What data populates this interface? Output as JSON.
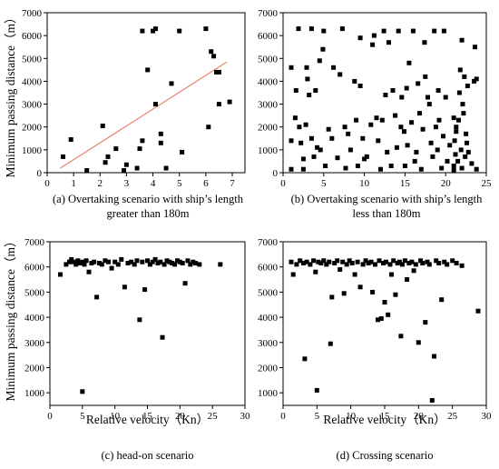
{
  "figure": {
    "ylabel_top": "Minimum passing distance（m）",
    "ylabel_bottom": "Minimum passing distance（m）"
  },
  "chart_data": [
    {
      "type": "scatter",
      "id": "a",
      "caption_line1": "(a) Overtaking scenario with ship’s length",
      "caption_line2": "greater than 180m",
      "xlabel": "",
      "ylabel": "Minimum passing distance（m）",
      "xlim": [
        0,
        7.5
      ],
      "ylim": [
        0,
        7000
      ],
      "xticks": [
        0,
        1,
        2,
        3,
        4,
        5,
        6,
        7
      ],
      "yticks": [
        0,
        1000,
        2000,
        3000,
        4000,
        5000,
        6000,
        7000
      ],
      "trendline": {
        "color": "#e8705a",
        "x": [
          0.5,
          6.8
        ],
        "y": [
          200,
          4850
        ]
      },
      "points": [
        [
          0.6,
          700
        ],
        [
          0.9,
          1450
        ],
        [
          1.5,
          100
        ],
        [
          2.1,
          2050
        ],
        [
          2.3,
          700
        ],
        [
          2.2,
          450
        ],
        [
          2.6,
          1050
        ],
        [
          2.9,
          100
        ],
        [
          3.0,
          350
        ],
        [
          3.4,
          200
        ],
        [
          3.5,
          1050
        ],
        [
          3.6,
          1400
        ],
        [
          3.6,
          6200
        ],
        [
          3.8,
          4500
        ],
        [
          4.0,
          6200
        ],
        [
          4.1,
          6300
        ],
        [
          4.1,
          3000
        ],
        [
          4.3,
          1700
        ],
        [
          4.3,
          1300
        ],
        [
          4.5,
          200
        ],
        [
          4.7,
          3900
        ],
        [
          5.0,
          6200
        ],
        [
          5.1,
          900
        ],
        [
          6.0,
          6300
        ],
        [
          6.1,
          2000
        ],
        [
          6.2,
          5300
        ],
        [
          6.3,
          5100
        ],
        [
          6.4,
          4400
        ],
        [
          6.5,
          4400
        ],
        [
          6.5,
          3000
        ],
        [
          6.9,
          3100
        ]
      ]
    },
    {
      "type": "scatter",
      "id": "b",
      "caption_line1": "(b) Overtaking scenario with ship’s length",
      "caption_line2": "less than 180m",
      "xlabel": "",
      "ylabel": "",
      "xlim": [
        0,
        25
      ],
      "ylim": [
        0,
        7000
      ],
      "xticks": [
        0,
        5,
        10,
        15,
        20,
        25
      ],
      "yticks": [
        0,
        1000,
        2000,
        3000,
        4000,
        5000,
        6000,
        7000
      ],
      "points": [
        [
          1.0,
          150
        ],
        [
          1.0,
          1400
        ],
        [
          1.0,
          4600
        ],
        [
          1.5,
          2400
        ],
        [
          1.6,
          3600
        ],
        [
          1.9,
          6300
        ],
        [
          2.0,
          2000
        ],
        [
          2.2,
          1300
        ],
        [
          2.5,
          600
        ],
        [
          2.5,
          150
        ],
        [
          2.8,
          2100
        ],
        [
          2.9,
          4600
        ],
        [
          3.0,
          4100
        ],
        [
          3.2,
          3400
        ],
        [
          3.5,
          1500
        ],
        [
          3.5,
          6300
        ],
        [
          3.8,
          700
        ],
        [
          4.0,
          3600
        ],
        [
          4.2,
          1100
        ],
        [
          4.5,
          4900
        ],
        [
          4.6,
          1000
        ],
        [
          4.9,
          5400
        ],
        [
          5.0,
          6200
        ],
        [
          5.2,
          300
        ],
        [
          5.6,
          1900
        ],
        [
          6.0,
          1500
        ],
        [
          6.2,
          4600
        ],
        [
          6.7,
          650
        ],
        [
          7.0,
          4300
        ],
        [
          7.3,
          6300
        ],
        [
          7.6,
          2000
        ],
        [
          7.7,
          200
        ],
        [
          8.0,
          1700
        ],
        [
          8.3,
          1000
        ],
        [
          8.8,
          4000
        ],
        [
          9.0,
          2300
        ],
        [
          9.2,
          300
        ],
        [
          9.5,
          5900
        ],
        [
          9.5,
          3800
        ],
        [
          9.8,
          1500
        ],
        [
          10.0,
          600
        ],
        [
          10.3,
          700
        ],
        [
          10.8,
          2100
        ],
        [
          11.0,
          5600
        ],
        [
          11.2,
          6000
        ],
        [
          11.5,
          2400
        ],
        [
          11.7,
          1400
        ],
        [
          12.0,
          150
        ],
        [
          12.2,
          2300
        ],
        [
          12.4,
          6200
        ],
        [
          12.6,
          3400
        ],
        [
          12.8,
          900
        ],
        [
          13.0,
          5700
        ],
        [
          13.3,
          300
        ],
        [
          13.5,
          3600
        ],
        [
          13.8,
          2500
        ],
        [
          14.0,
          1100
        ],
        [
          14.2,
          6200
        ],
        [
          14.5,
          2000
        ],
        [
          14.6,
          3300
        ],
        [
          14.9,
          1800
        ],
        [
          15.0,
          300
        ],
        [
          15.2,
          3700
        ],
        [
          15.3,
          1200
        ],
        [
          15.5,
          4800
        ],
        [
          15.8,
          2200
        ],
        [
          16.0,
          6200
        ],
        [
          16.2,
          500
        ],
        [
          16.4,
          900
        ],
        [
          16.6,
          3900
        ],
        [
          16.8,
          2600
        ],
        [
          17.0,
          150
        ],
        [
          17.2,
          1900
        ],
        [
          17.4,
          5700
        ],
        [
          17.5,
          4200
        ],
        [
          17.8,
          3300
        ],
        [
          18.0,
          3000
        ],
        [
          18.2,
          1300
        ],
        [
          18.4,
          700
        ],
        [
          18.6,
          6200
        ],
        [
          18.8,
          2000
        ],
        [
          19.0,
          1000
        ],
        [
          19.1,
          3600
        ],
        [
          19.2,
          2300
        ],
        [
          19.5,
          200
        ],
        [
          19.7,
          1600
        ],
        [
          19.8,
          6200
        ],
        [
          20.0,
          3300
        ],
        [
          20.2,
          500
        ],
        [
          20.5,
          1200
        ],
        [
          21.0,
          2400
        ],
        [
          21.0,
          300
        ],
        [
          21.0,
          100
        ],
        [
          21.1,
          1400
        ],
        [
          21.2,
          800
        ],
        [
          21.3,
          2000
        ],
        [
          21.3,
          1800
        ],
        [
          21.5,
          500
        ],
        [
          21.6,
          2300
        ],
        [
          21.7,
          3500
        ],
        [
          21.8,
          4500
        ],
        [
          21.9,
          1000
        ],
        [
          22.0,
          5800
        ],
        [
          22.0,
          200
        ],
        [
          22.1,
          3000
        ],
        [
          22.2,
          2600
        ],
        [
          22.3,
          4200
        ],
        [
          22.4,
          700
        ],
        [
          22.5,
          1700
        ],
        [
          22.6,
          1300
        ],
        [
          22.7,
          3800
        ],
        [
          22.8,
          900
        ],
        [
          23.2,
          400
        ],
        [
          23.5,
          4000
        ],
        [
          23.6,
          5500
        ],
        [
          23.8,
          150
        ],
        [
          23.8,
          4100
        ]
      ]
    },
    {
      "type": "scatter",
      "id": "c",
      "caption_line1": "(c) head-on scenario",
      "caption_line2": "",
      "xlabel": "Relative velocity（Kn）",
      "ylabel": "Minimum passing distance（m）",
      "xlim": [
        0,
        30
      ],
      "ylim": [
        500,
        7000
      ],
      "xticks": [
        0,
        5,
        10,
        15,
        20,
        25,
        30
      ],
      "yticks": [
        1000,
        2000,
        3000,
        4000,
        5000,
        6000,
        7000
      ],
      "points": [
        [
          1.6,
          5700
        ],
        [
          2.5,
          6100
        ],
        [
          3.0,
          6200
        ],
        [
          3.3,
          6300
        ],
        [
          3.6,
          6200
        ],
        [
          4.0,
          6100
        ],
        [
          4.3,
          6250
        ],
        [
          4.6,
          6150
        ],
        [
          5.0,
          6200
        ],
        [
          5.3,
          6100
        ],
        [
          5.6,
          6250
        ],
        [
          6.0,
          5800
        ],
        [
          6.4,
          6150
        ],
        [
          6.8,
          6200
        ],
        [
          7.2,
          4800
        ],
        [
          7.6,
          6150
        ],
        [
          8.0,
          6100
        ],
        [
          8.5,
          6250
        ],
        [
          9.0,
          6200
        ],
        [
          9.5,
          5950
        ],
        [
          10.0,
          6200
        ],
        [
          10.5,
          6100
        ],
        [
          11.0,
          6300
        ],
        [
          11.5,
          5200
        ],
        [
          12.0,
          6150
        ],
        [
          12.5,
          6200
        ],
        [
          13.0,
          6100
        ],
        [
          13.4,
          6250
        ],
        [
          13.8,
          3900
        ],
        [
          14.2,
          6200
        ],
        [
          14.6,
          5100
        ],
        [
          15.0,
          6250
        ],
        [
          15.4,
          6100
        ],
        [
          15.8,
          6200
        ],
        [
          16.2,
          6300
        ],
        [
          16.6,
          6150
        ],
        [
          17.0,
          6200
        ],
        [
          17.3,
          3200
        ],
        [
          17.6,
          6100
        ],
        [
          18.0,
          6250
        ],
        [
          18.4,
          6200
        ],
        [
          18.8,
          6150
        ],
        [
          19.2,
          6100
        ],
        [
          19.6,
          6250
        ],
        [
          20.0,
          6200
        ],
        [
          20.4,
          6150
        ],
        [
          20.8,
          5350
        ],
        [
          21.2,
          6250
        ],
        [
          21.6,
          6100
        ],
        [
          22.0,
          6200
        ],
        [
          22.4,
          6150
        ],
        [
          23.0,
          6100
        ],
        [
          26.2,
          6100
        ],
        [
          5.0,
          1050
        ]
      ]
    },
    {
      "type": "scatter",
      "id": "d",
      "caption_line1": "(d) Crossing scenario",
      "caption_line2": "",
      "xlabel": "Relative velocity（Kn）",
      "ylabel": "",
      "xlim": [
        0,
        30
      ],
      "ylim": [
        500,
        7000
      ],
      "xticks": [
        0,
        5,
        10,
        15,
        20,
        25,
        30
      ],
      "yticks": [
        1000,
        2000,
        3000,
        4000,
        5000,
        6000,
        7000
      ],
      "points": [
        [
          1.2,
          6200
        ],
        [
          1.5,
          5700
        ],
        [
          2.0,
          6100
        ],
        [
          2.5,
          6250
        ],
        [
          3.0,
          6150
        ],
        [
          3.2,
          2350
        ],
        [
          3.5,
          6200
        ],
        [
          4.0,
          6100
        ],
        [
          4.5,
          6250
        ],
        [
          4.8,
          5800
        ],
        [
          5.0,
          1100
        ],
        [
          5.2,
          6200
        ],
        [
          5.6,
          6150
        ],
        [
          6.0,
          6250
        ],
        [
          6.4,
          6100
        ],
        [
          6.8,
          6200
        ],
        [
          7.0,
          2950
        ],
        [
          7.2,
          4800
        ],
        [
          7.6,
          6150
        ],
        [
          8.0,
          6250
        ],
        [
          8.4,
          5900
        ],
        [
          8.8,
          6200
        ],
        [
          9.0,
          4950
        ],
        [
          9.4,
          6100
        ],
        [
          9.8,
          6250
        ],
        [
          10.2,
          6150
        ],
        [
          10.6,
          5700
        ],
        [
          11.0,
          6200
        ],
        [
          11.4,
          5200
        ],
        [
          11.8,
          6100
        ],
        [
          12.2,
          6250
        ],
        [
          12.6,
          6150
        ],
        [
          13.0,
          6200
        ],
        [
          13.2,
          5000
        ],
        [
          13.6,
          6100
        ],
        [
          14.0,
          3900
        ],
        [
          14.2,
          6250
        ],
        [
          14.5,
          3950
        ],
        [
          14.8,
          6150
        ],
        [
          15.0,
          4600
        ],
        [
          15.2,
          6200
        ],
        [
          15.5,
          4100
        ],
        [
          15.8,
          6100
        ],
        [
          16.0,
          5700
        ],
        [
          16.3,
          6250
        ],
        [
          16.6,
          4900
        ],
        [
          16.9,
          6150
        ],
        [
          17.2,
          6200
        ],
        [
          17.4,
          3250
        ],
        [
          17.6,
          6100
        ],
        [
          18.0,
          6250
        ],
        [
          18.3,
          5500
        ],
        [
          18.6,
          6150
        ],
        [
          19.0,
          6200
        ],
        [
          19.3,
          5850
        ],
        [
          19.6,
          6100
        ],
        [
          20.0,
          3000
        ],
        [
          20.3,
          6250
        ],
        [
          20.6,
          6150
        ],
        [
          21.0,
          3800
        ],
        [
          21.3,
          6200
        ],
        [
          21.6,
          6100
        ],
        [
          22.0,
          700
        ],
        [
          22.3,
          2450
        ],
        [
          22.6,
          6250
        ],
        [
          23.0,
          6150
        ],
        [
          23.4,
          4700
        ],
        [
          23.8,
          6200
        ],
        [
          24.2,
          6100
        ],
        [
          25.0,
          6250
        ],
        [
          25.6,
          6150
        ],
        [
          26.4,
          6050
        ],
        [
          28.8,
          4250
        ]
      ]
    }
  ]
}
